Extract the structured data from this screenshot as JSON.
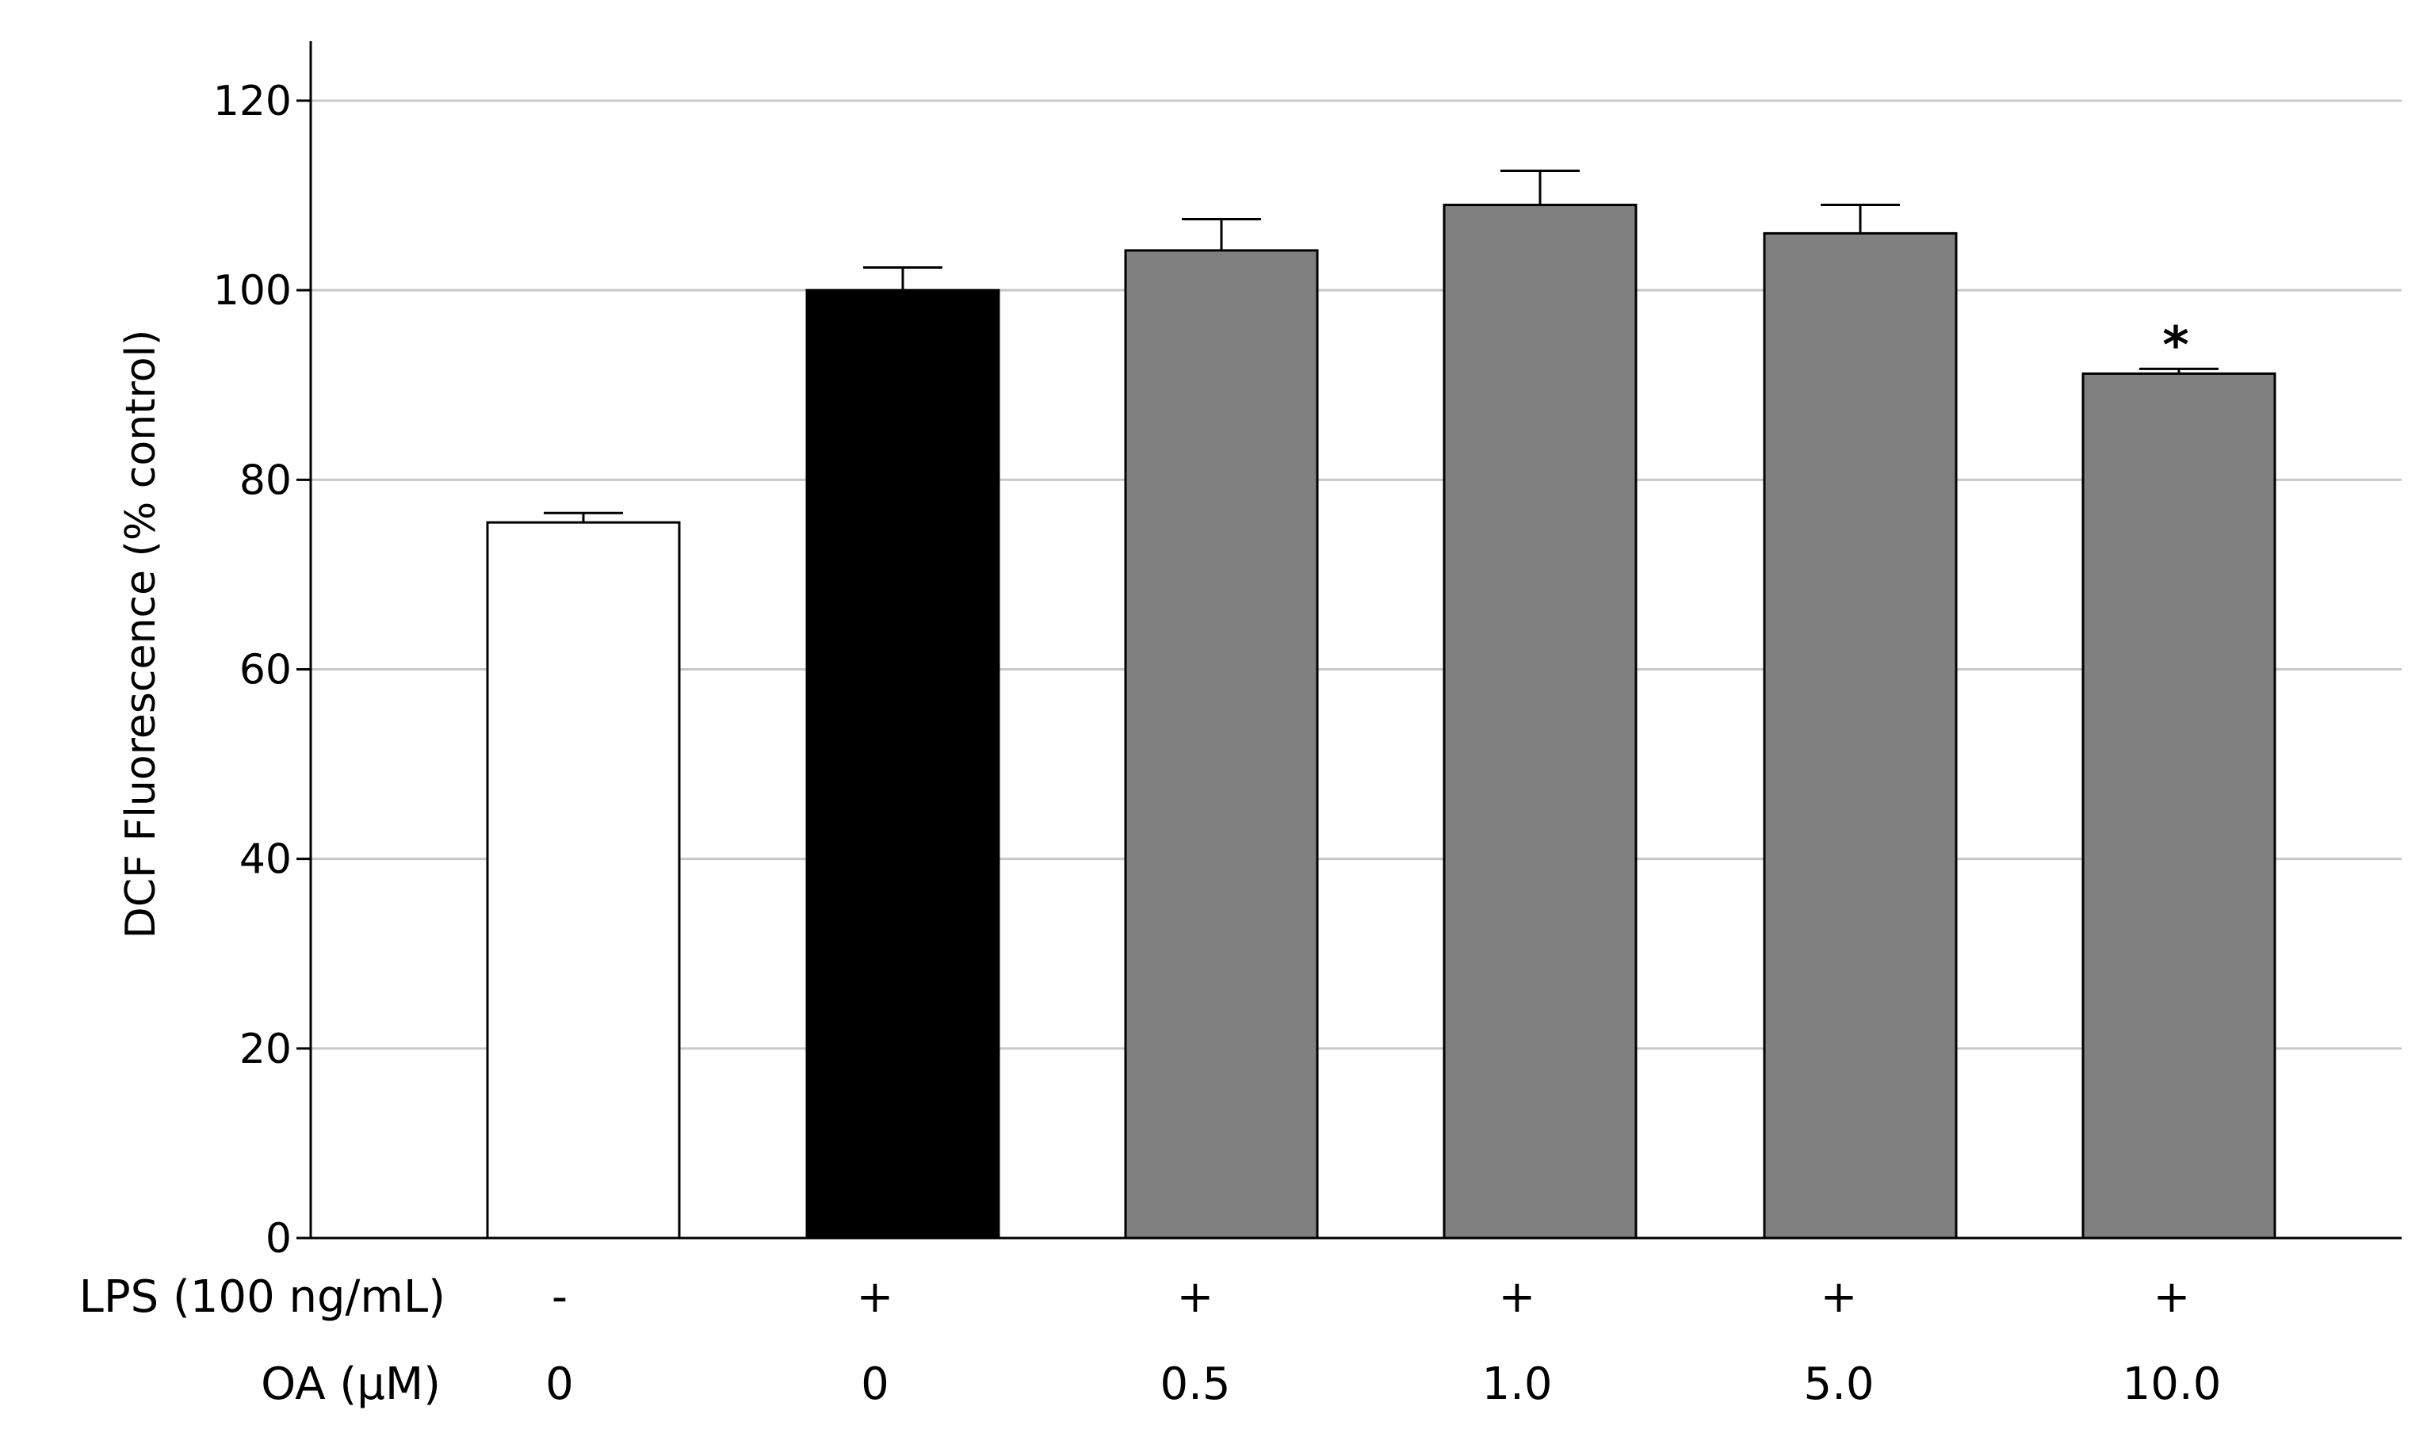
{
  "chart_data": {
    "type": "bar",
    "title": "",
    "xlabel": "",
    "ylabel": "DCF Fluorescence (% control)",
    "ylim": [
      0,
      126
    ],
    "yticks": [
      0,
      20,
      40,
      60,
      80,
      100,
      120
    ],
    "grid": true,
    "values": [
      75.5,
      100.0,
      104.2,
      109.0,
      106.0,
      91.2
    ],
    "errors": [
      1.0,
      2.4,
      3.3,
      3.6,
      3.0,
      0.5
    ],
    "bar_colors": [
      "#ffffff",
      "#000000",
      "#808080",
      "#808080",
      "#808080",
      "#808080"
    ],
    "annotations": [
      "",
      "",
      "",
      "",
      "",
      "*"
    ],
    "rows": [
      {
        "label": "LPS (100 ng/mL)",
        "values": [
          "-",
          "+",
          "+",
          "+",
          "+",
          "+"
        ]
      },
      {
        "label": "OA (μM)",
        "values": [
          "0",
          "0",
          "0.5",
          "1.0",
          "5.0",
          "10.0"
        ]
      }
    ]
  }
}
